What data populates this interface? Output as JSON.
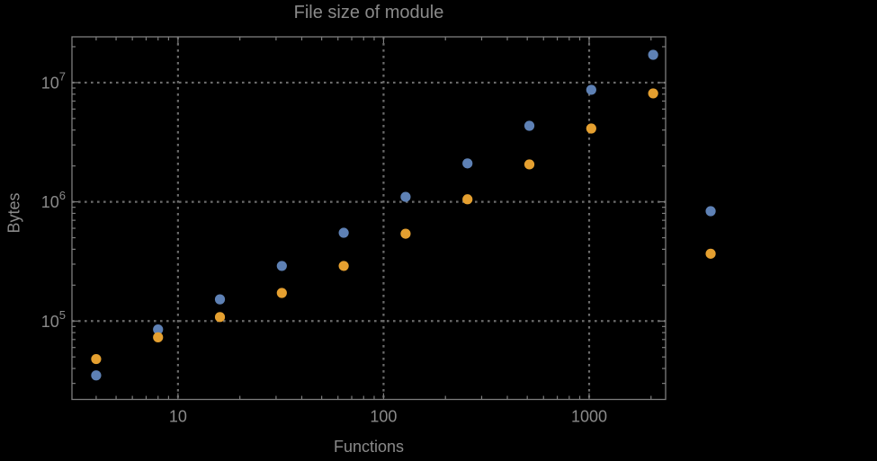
{
  "chart_data": {
    "type": "scatter",
    "title": "File size of module",
    "xlabel": "Functions",
    "ylabel": "Bytes",
    "x_scale": "log",
    "y_scale": "log",
    "xlim": [
      3.05,
      2355
    ],
    "ylim": [
      22000,
      24200000
    ],
    "grid": "dotted lines at decade ticks, both axes",
    "legend_position": "none",
    "x": [
      4,
      8,
      16,
      32,
      64,
      128,
      256,
      512,
      1024,
      2048,
      3900
    ],
    "series": [
      {
        "name": "series-blue",
        "color": "#5e81b5",
        "values": [
          35000,
          85000,
          152000,
          290000,
          550000,
          1100000,
          2100000,
          4340000,
          8700000,
          17100000,
          835000
        ]
      },
      {
        "name": "series-orange",
        "color": "#e5a030",
        "values": [
          48000,
          73000,
          108000,
          172000,
          290000,
          540000,
          1050000,
          2060000,
          4120000,
          8120000,
          367000
        ]
      }
    ],
    "x_ticks": [
      {
        "value": 10,
        "label": "10"
      },
      {
        "value": 100,
        "label": "100"
      },
      {
        "value": 1000,
        "label": "1000"
      }
    ],
    "y_ticks": [
      {
        "value": 100000,
        "base": "10",
        "exp": "5"
      },
      {
        "value": 1000000,
        "base": "10",
        "exp": "6"
      },
      {
        "value": 10000000,
        "base": "10",
        "exp": "7"
      }
    ]
  },
  "style": {
    "background_color": "#000000",
    "frame_color": "#7d7d7d",
    "grid_color": "#6b6b6b",
    "text_color": "#8a8a8a",
    "point_radius": 5.6
  }
}
